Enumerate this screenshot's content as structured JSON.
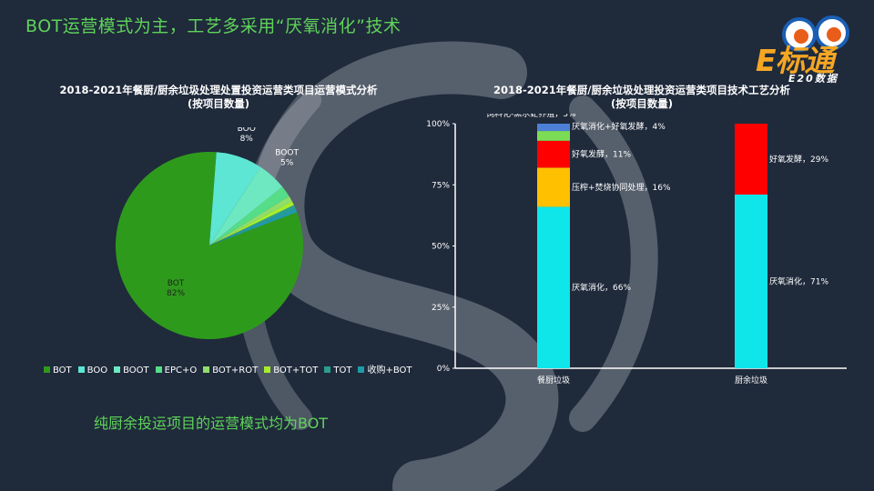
{
  "slide": {
    "title": "BOT运营模式为主，工艺多采用“厌氧消化”技术",
    "footnote": "纯厨余投运项目的运营模式均为BOT"
  },
  "logo": {
    "main": "E标通",
    "sub": "E20数据"
  },
  "colors": {
    "background": "#1f2a3b",
    "accent_green": "#5fd35a",
    "anaerobic": "#0ee6ea",
    "incineration": "#ffc000",
    "aerobic": "#ff0000",
    "anaerobic_aerobic": "#7ddc55",
    "bsf": "#4d7fd6"
  },
  "chart_data": [
    {
      "type": "pie",
      "title": "2018-2021年餐厨/厨余垃圾处理处置投资运营类项目运营模式分析",
      "subtitle": "(按项目数量)",
      "slices": [
        {
          "name": "BOT",
          "value": 82,
          "label": "BOT\n82%",
          "color": "#2e9a1c"
        },
        {
          "name": "BOO",
          "value": 8,
          "label": "BOO\n8%",
          "color": "#5ce6d3"
        },
        {
          "name": "BOOT",
          "value": 5,
          "label": "BOOT\n5%",
          "color": "#6de8c0"
        },
        {
          "name": "EPC+O",
          "value": 2,
          "label": "",
          "color": "#55dd88"
        },
        {
          "name": "BOT+ROT",
          "value": 1,
          "label": "",
          "color": "#8fdd6a"
        },
        {
          "name": "BOT+TOT",
          "value": 0.7,
          "label": "",
          "color": "#a7ee2a"
        },
        {
          "name": "TOT",
          "value": 0.6,
          "label": "",
          "color": "#2a9d8f"
        },
        {
          "name": "收购+BOT",
          "value": 0.7,
          "label": "",
          "color": "#1f9aa8"
        }
      ],
      "legend_position": "bottom"
    },
    {
      "type": "bar",
      "stacked": "percent",
      "title": "2018-2021年餐厨/厨余垃圾处理投资运营类项目技术工艺分析",
      "subtitle": "(按项目数量)",
      "categories": [
        "餐厨垃圾",
        "厨余垃圾"
      ],
      "yticks": [
        "0%",
        "25%",
        "50%",
        "75%",
        "100%"
      ],
      "ylim": [
        0,
        100
      ],
      "series": [
        {
          "name": "厌氧消化",
          "values": [
            66,
            71
          ],
          "color": "#0ee6ea",
          "labels": [
            "厌氧消化，66%",
            "厌氧消化，71%"
          ]
        },
        {
          "name": "压榨+焚烧协同处理",
          "values": [
            16,
            0
          ],
          "color": "#ffc000",
          "labels": [
            "压榨+焚烧协同处理，16%",
            ""
          ]
        },
        {
          "name": "好氧发酵",
          "values": [
            11,
            29
          ],
          "color": "#ff0000",
          "labels": [
            "好氧发酵，11%",
            "好氧发酵，29%"
          ]
        },
        {
          "name": "厌氧消化+好氧发酵",
          "values": [
            4,
            0
          ],
          "color": "#7ddc55",
          "labels": [
            "厌氧消化+好氧发酵，4%",
            ""
          ]
        },
        {
          "name": "饲料化-黑水虻养殖",
          "values": [
            3,
            0
          ],
          "color": "#4d7fd6",
          "labels": [
            "饲料化-黑水虻养殖，3%",
            ""
          ]
        }
      ]
    }
  ]
}
